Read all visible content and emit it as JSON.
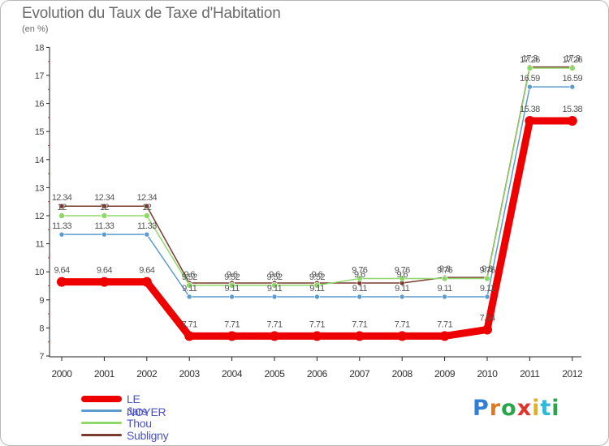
{
  "chart_data": {
    "type": "line",
    "title": "Evolution du Taux de Taxe d'Habitation",
    "subtitle": "(en %)",
    "x": [
      "2000",
      "2001",
      "2002",
      "2003",
      "2004",
      "2005",
      "2006",
      "2007",
      "2008",
      "2009",
      "2010",
      "2011",
      "2012"
    ],
    "ylim": [
      7,
      18
    ],
    "yticks": [
      "7",
      "8",
      "9",
      "10",
      "11",
      "12",
      "13",
      "14",
      "15",
      "16",
      "17",
      "18"
    ],
    "grid": false,
    "legend_position": "bottom-left",
    "series": [
      {
        "name": "Subligny",
        "color": "#7a3a2e",
        "values": [
          12.34,
          12.34,
          12.34,
          9.6,
          9.6,
          9.6,
          9.6,
          9.6,
          9.6,
          9.8,
          9.8,
          17.3,
          17.3
        ],
        "labels": [
          "12.34",
          "12.34",
          "12.34",
          "9.6",
          "9.6",
          "9.6",
          "9.6",
          "9.6",
          "9.6",
          "9.8",
          "9.8",
          "17.3",
          "17.3"
        ]
      },
      {
        "name": "Thou",
        "color": "#8ed86a",
        "values": [
          12,
          12,
          12,
          9.52,
          9.52,
          9.52,
          9.52,
          9.76,
          9.76,
          9.76,
          9.76,
          17.26,
          17.26
        ],
        "labels": [
          "12",
          "12",
          "12",
          "9.52",
          "9.52",
          "9.52",
          "9.52",
          "9.76",
          "9.76",
          "9.76",
          "9.76",
          "17.26",
          "17.26"
        ]
      },
      {
        "name": "Jars",
        "color": "#5b9bcf",
        "values": [
          11.33,
          11.33,
          11.33,
          9.11,
          9.11,
          9.11,
          9.11,
          9.11,
          9.11,
          9.11,
          9.11,
          16.59,
          16.59
        ],
        "labels": [
          "11.33",
          "11.33",
          "11.33",
          "9.11",
          "9.11",
          "9.11",
          "9.11",
          "9.11",
          "9.11",
          "9.11",
          "9.11",
          "16.59",
          "16.59"
        ]
      },
      {
        "name": "LE NOYER",
        "color": "#ee0000",
        "values": [
          9.64,
          9.64,
          9.64,
          7.71,
          7.71,
          7.71,
          7.71,
          7.71,
          7.71,
          7.71,
          7.94,
          15.38,
          15.38
        ],
        "labels": [
          "9.64",
          "9.64",
          "9.64",
          "7.71",
          "7.71",
          "7.71",
          "7.71",
          "7.71",
          "7.71",
          "7.71",
          "7.94",
          "15.38",
          "15.38"
        ]
      }
    ],
    "legend": [
      {
        "name": "LE NOYER",
        "color": "#ee0000"
      },
      {
        "name": "Jars",
        "color": "#5b9bcf"
      },
      {
        "name": "Thou",
        "color": "#8ed86a"
      },
      {
        "name": "Subligny",
        "color": "#7a3a2e"
      }
    ]
  },
  "brand": {
    "letters": [
      "P",
      "r",
      "o",
      "x",
      "i",
      "t",
      "i"
    ],
    "colors": [
      "#2f7fd8",
      "#e07a1f",
      "#27a64a",
      "#e0342c",
      "#e0b21f",
      "#2fb8d8",
      "#27a64a"
    ]
  }
}
